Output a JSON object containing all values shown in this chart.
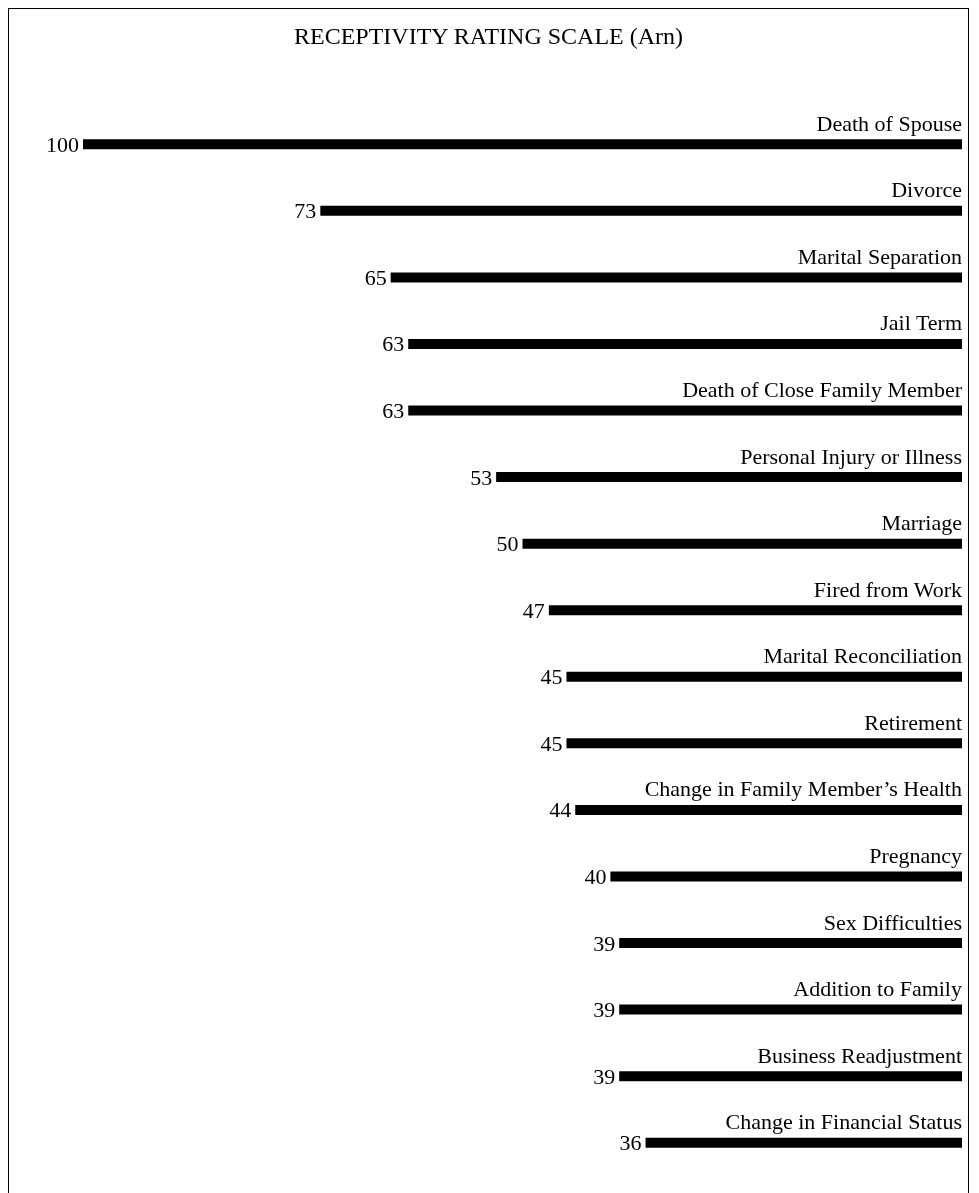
{
  "chart_data": {
    "type": "bar",
    "orientation": "horizontal",
    "title": "RECEPTIVITY RATING SCALE (Arn)",
    "categories": [
      "Death of Spouse",
      "Divorce",
      "Marital Separation",
      "Jail Term",
      "Death of Close Family Member",
      "Personal Injury or Illness",
      "Marriage",
      "Fired from Work",
      "Marital Reconciliation",
      "Retirement",
      "Change in Family Member’s Health",
      "Pregnancy",
      "Sex Difficulties",
      "Addition to Family",
      "Business Readjustment",
      "Change in Financial Status"
    ],
    "values": [
      100,
      73,
      65,
      63,
      63,
      53,
      50,
      47,
      45,
      45,
      44,
      40,
      39,
      39,
      39,
      36
    ],
    "color": "#000000",
    "data_labels": true
  }
}
